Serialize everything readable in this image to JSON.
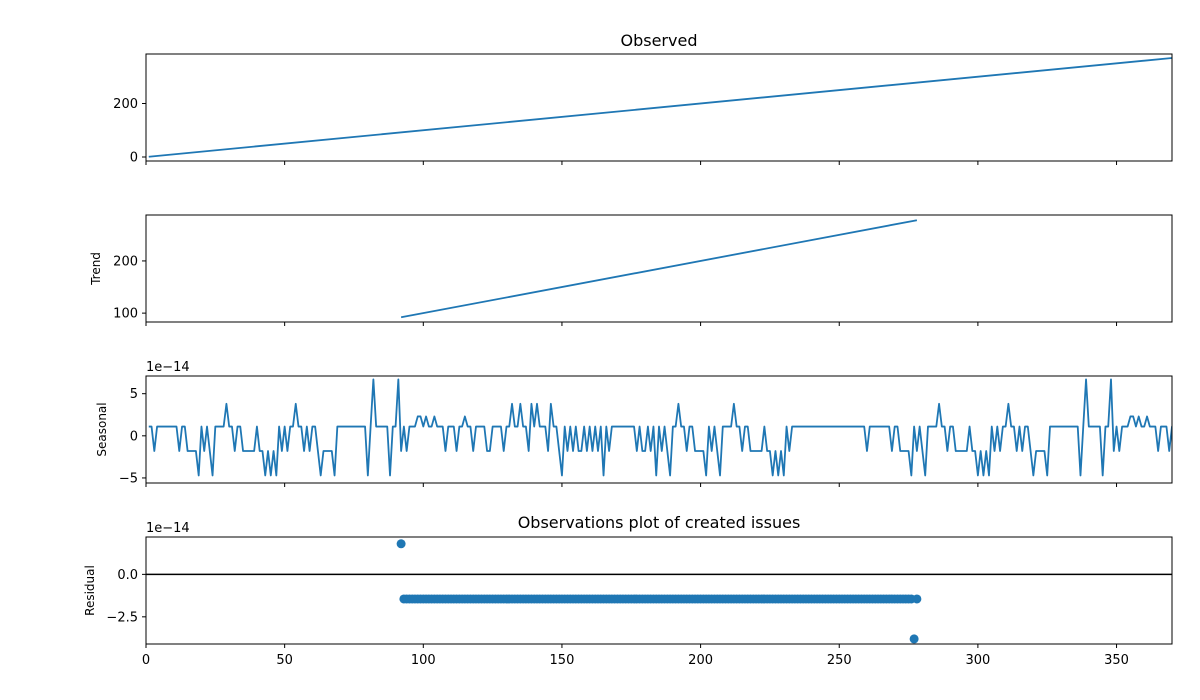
{
  "chart_data": [
    {
      "type": "line",
      "title": "Observed",
      "ylabel": "",
      "xlim": [
        0,
        370
      ],
      "ylim": [
        -15,
        385
      ],
      "yticks": [
        0,
        200
      ],
      "ytick_labels": [
        "0",
        "200"
      ],
      "series": [
        {
          "color": "#1f77b4",
          "x": [
            1,
            370
          ],
          "y": [
            1,
            370
          ]
        }
      ]
    },
    {
      "type": "line",
      "title": "",
      "ylabel": "Trend",
      "xlim": [
        0,
        370
      ],
      "ylim": [
        83,
        288
      ],
      "yticks": [
        100,
        200
      ],
      "ytick_labels": [
        "100",
        "200"
      ],
      "series": [
        {
          "color": "#1f77b4",
          "x": [
            92,
            278
          ],
          "y": [
            92,
            278
          ]
        }
      ]
    },
    {
      "type": "line",
      "title": "",
      "ylabel": "Seasonal",
      "offset_text": "1e−14",
      "xlim": [
        0,
        370
      ],
      "ylim": [
        -5.6,
        7.1
      ],
      "yticks": [
        -5,
        0,
        5
      ],
      "ytick_labels": [
        "−5",
        "0",
        "5"
      ],
      "series": [
        {
          "color": "#1f77b4",
          "x_start": 1,
          "y_pattern": [
            1.1,
            1.1,
            -1.8,
            1.1,
            1.1,
            1.1,
            1.1,
            1.1,
            1.1,
            1.1,
            1.1,
            -1.8,
            1.1,
            1.1,
            -1.8,
            -1.8,
            -1.8,
            -1.8,
            -4.7,
            1.1,
            -1.8,
            1.1,
            -1.8,
            -4.7,
            1.1,
            1.1,
            1.1,
            1.1,
            3.8,
            1.1,
            1.1,
            -1.8,
            1.1,
            1.1,
            -1.8,
            -1.8,
            -1.8,
            -1.8,
            -1.8,
            1.1,
            -1.8,
            -1.8,
            -4.7,
            -1.8,
            -4.7,
            -1.8,
            -4.7,
            1.1,
            -1.8,
            1.1,
            -1.8,
            1.1,
            1.1,
            3.8,
            1.1,
            1.1,
            -1.8,
            1.1,
            -1.8,
            1.1,
            1.1,
            -1.8,
            -4.7,
            -1.8,
            -1.8,
            -1.8,
            -1.8,
            -4.7,
            1.1,
            1.1,
            1.1,
            1.1,
            1.1,
            1.1,
            1.1,
            1.1,
            1.1,
            1.1,
            1.1,
            -4.7,
            1.1,
            6.7,
            1.1,
            1.1,
            1.1,
            1.1,
            1.1,
            -4.7,
            1.1,
            1.1,
            6.7,
            -1.8,
            1.1,
            -1.8,
            1.1,
            1.1,
            1.1,
            2.3,
            2.3,
            1.1,
            2.3,
            1.1,
            1.1,
            2.3,
            1.1,
            1.1,
            1.1,
            -1.8,
            1.1,
            1.1,
            1.1,
            -1.8,
            1.1,
            1.1,
            2.3,
            1.1,
            1.1,
            -1.8,
            1.1,
            1.1,
            1.1,
            1.1,
            -1.8,
            -1.8,
            1.1,
            1.1,
            1.1,
            1.1,
            -1.8,
            1.1,
            1.1,
            3.8,
            1.1,
            1.1,
            3.8,
            1.1,
            1.1,
            -1.8,
            3.8,
            1.1,
            3.8,
            1.1,
            1.1,
            1.1,
            -1.8,
            3.8,
            1.1,
            1.1,
            -1.8,
            -4.7,
            1.1,
            -1.8,
            1.1,
            -1.8,
            1.1,
            -1.8,
            -1.8,
            1.1,
            -1.8,
            1.1,
            -1.8,
            1.1,
            -1.8,
            1.1,
            -4.7,
            1.1,
            -1.8,
            1.1,
            1.1,
            1.1,
            1.1,
            1.1,
            1.1,
            1.1,
            1.1,
            1.1,
            -1.8,
            1.1,
            -1.8,
            -1.8,
            1.1,
            -1.8,
            1.1,
            -4.7,
            1.1,
            -1.8,
            1.1,
            -1.8,
            -4.7,
            1.1,
            1.1,
            3.8,
            1.1,
            1.1,
            -1.8,
            1.1,
            1.1,
            -1.8,
            -1.8,
            -1.8,
            -1.8,
            -4.7,
            1.1,
            -1.8,
            1.1,
            -1.8,
            -4.7,
            1.1,
            1.1,
            1.1,
            1.1,
            3.8,
            1.1,
            1.1,
            -1.8,
            1.1,
            1.1,
            -1.8,
            -1.8,
            -1.8,
            -1.8,
            -1.8,
            1.1,
            -1.8,
            -1.8,
            -4.7,
            -1.8,
            -4.7,
            -1.8,
            -4.7,
            1.1,
            -1.8,
            1.1,
            1.1,
            1.1,
            1.1,
            1.1,
            1.1,
            1.1,
            1.1,
            1.1,
            1.1,
            1.1,
            1.1,
            1.1,
            1.1,
            1.1,
            1.1,
            1.1,
            1.1,
            1.1,
            1.1,
            1.1,
            1.1,
            1.1,
            1.1,
            1.1
          ]
        }
      ]
    },
    {
      "type": "scatter",
      "title": "Observations plot of created issues",
      "ylabel": "Residual",
      "offset_text": "1e−14",
      "xlabel": "",
      "xlim": [
        0,
        370
      ],
      "ylim": [
        -4.1,
        2.2
      ],
      "yticks": [
        -2.5,
        0
      ],
      "ytick_labels": [
        "−2.5",
        "0.0"
      ],
      "xticks": [
        0,
        50,
        100,
        150,
        200,
        250,
        300,
        350
      ],
      "xtick_labels": [
        "0",
        "50",
        "100",
        "150",
        "200",
        "250",
        "300",
        "350"
      ],
      "hline": 0,
      "series": [
        {
          "color": "#1f77b4",
          "x_range": [
            93,
            278
          ],
          "y_value": -1.45,
          "outliers": [
            {
              "x": 92,
              "y": 1.8
            },
            {
              "x": 277,
              "y": -3.8
            }
          ]
        }
      ]
    }
  ]
}
